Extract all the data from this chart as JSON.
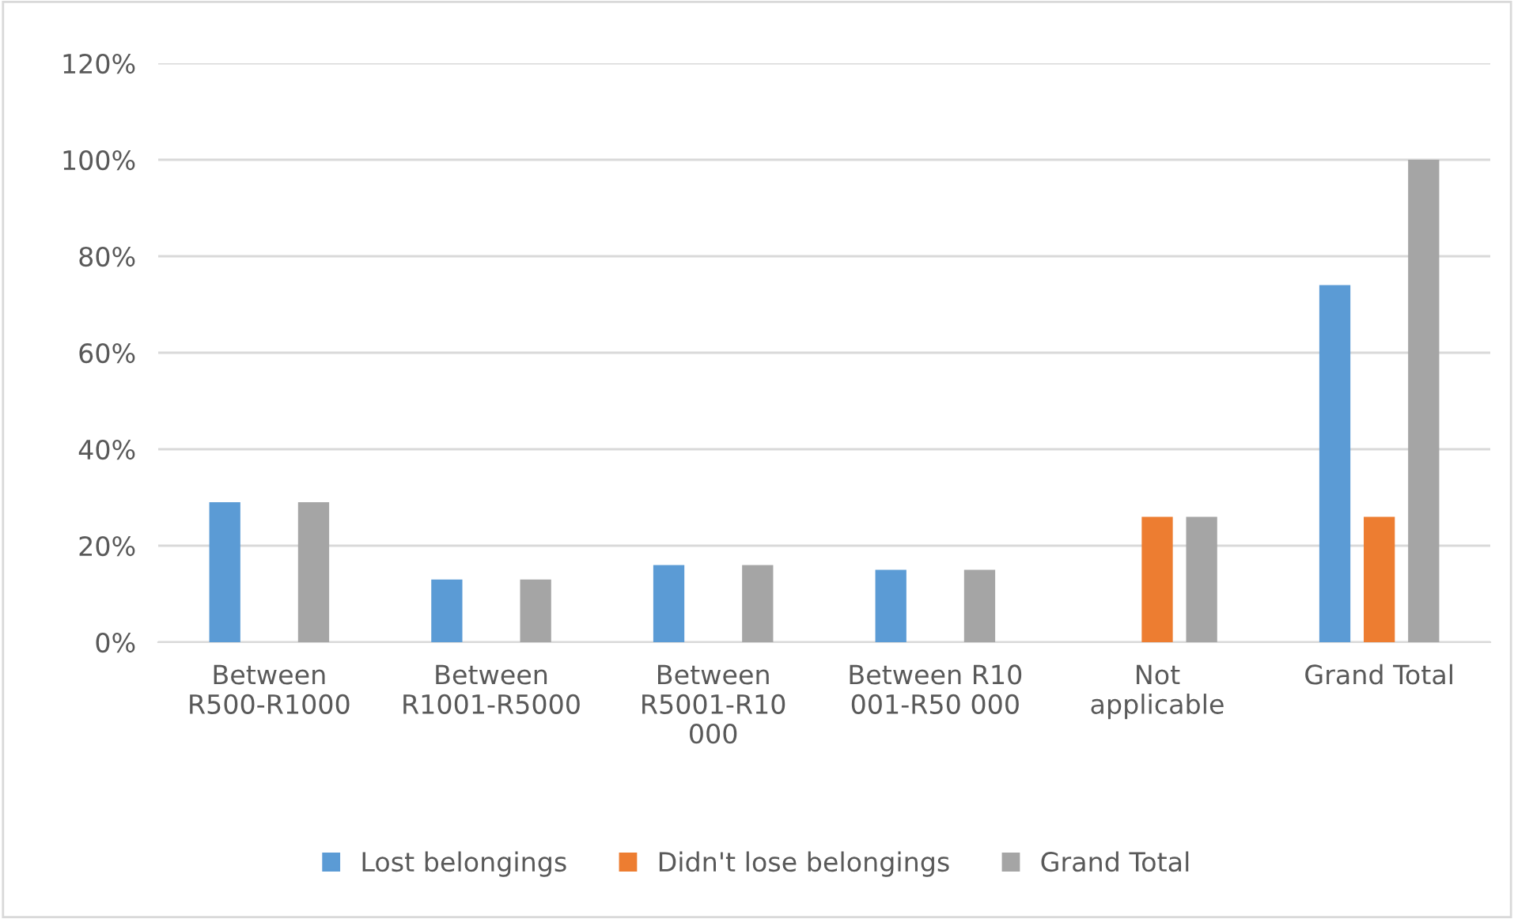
{
  "chart_data": {
    "type": "bar",
    "categories": [
      "Between\nR500-R1000",
      "Between\nR1001-R5000",
      "Between\nR5001-R10\n000",
      "Between R10\n001-R50 000",
      "Not\napplicable",
      "Grand Total"
    ],
    "series": [
      {
        "name": "Lost belongings",
        "color": "#5b9bd5",
        "values": [
          29,
          13,
          16,
          15,
          null,
          74
        ]
      },
      {
        "name": "Didn't lose belongings",
        "color": "#ed7d31",
        "values": [
          null,
          null,
          null,
          null,
          26,
          26
        ]
      },
      {
        "name": "Grand Total",
        "color": "#a5a5a5",
        "values": [
          29,
          13,
          16,
          15,
          26,
          100
        ]
      }
    ],
    "ylim": [
      0,
      120
    ],
    "yticks": [
      {
        "value": 0,
        "label": "0%"
      },
      {
        "value": 20,
        "label": "20%"
      },
      {
        "value": 40,
        "label": "40%"
      },
      {
        "value": 60,
        "label": "60%"
      },
      {
        "value": 80,
        "label": "80%"
      },
      {
        "value": 100,
        "label": "100%"
      },
      {
        "value": 120,
        "label": "120%"
      }
    ],
    "grid": "y",
    "legend": "bottom"
  }
}
